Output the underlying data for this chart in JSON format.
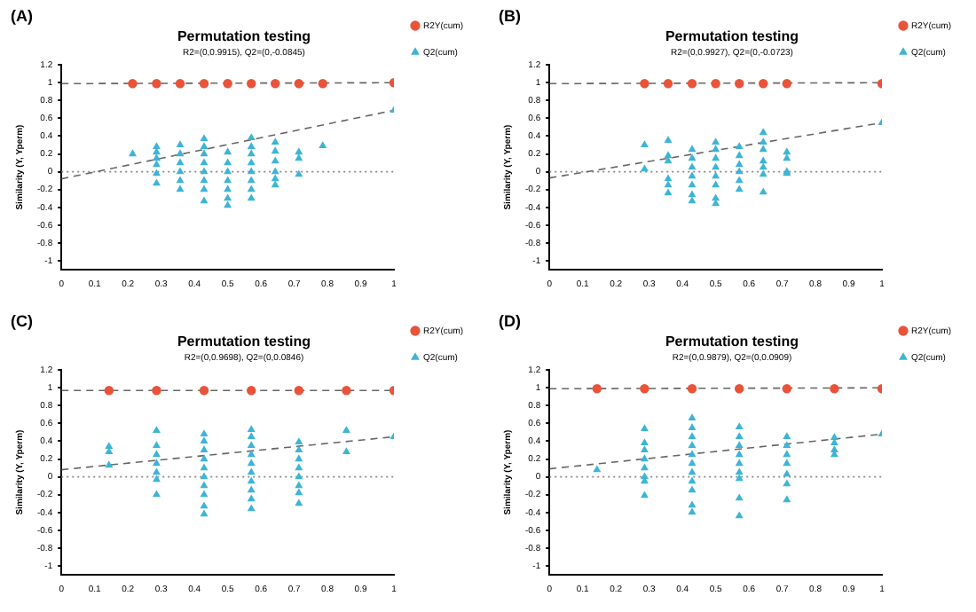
{
  "chart_data": [
    {
      "type": "scatter",
      "title": "Permutation testing",
      "subtitle": "R2=(0,0.9915), Q2=(0,-0.0845)",
      "ylabel": "Similarity (Y, Yperm)",
      "annotations": [
        "(A)"
      ],
      "xlim": [
        0,
        1
      ],
      "ylim": [
        -1.1,
        1.2
      ],
      "xticks": [
        0,
        0.1,
        0.2,
        0.3,
        0.4,
        0.5,
        0.6,
        0.7,
        0.8,
        0.9,
        1
      ],
      "yticks": [
        -1,
        -0.8,
        -0.6,
        -0.4,
        -0.2,
        0,
        0.2,
        0.4,
        0.6,
        0.8,
        1,
        1.2
      ],
      "grid": false,
      "legend": "right",
      "ref_lines": [
        {
          "axis": "y",
          "value": 0,
          "line_style": "dotted",
          "color": "#888888"
        }
      ],
      "series": [
        {
          "name": "R2Y(cum)",
          "type": "scatter",
          "marker": "circle",
          "color": "#e8533a",
          "x": [
            0.214,
            0.286,
            0.357,
            0.429,
            0.5,
            0.571,
            0.643,
            0.714,
            0.786,
            1
          ],
          "values": [
            0.99,
            0.99,
            0.99,
            0.99,
            0.99,
            0.99,
            0.99,
            0.99,
            0.99,
            1
          ]
        },
        {
          "name": "Q2(cum)",
          "type": "scatter",
          "marker": "triangle",
          "color": "#3cb4d6",
          "x": [
            0.214,
            0.286,
            0.286,
            0.286,
            0.286,
            0.286,
            0.286,
            0.357,
            0.357,
            0.357,
            0.357,
            0.357,
            0.357,
            0.429,
            0.429,
            0.429,
            0.429,
            0.429,
            0.429,
            0.429,
            0.429,
            0.5,
            0.5,
            0.5,
            0.5,
            0.5,
            0.5,
            0.5,
            0.571,
            0.571,
            0.571,
            0.571,
            0.571,
            0.571,
            0.571,
            0.571,
            0.643,
            0.643,
            0.643,
            0.643,
            0.643,
            0.643,
            0.714,
            0.714,
            0.714,
            0.786,
            1
          ],
          "values": [
            0.2,
            0.28,
            0.22,
            0.15,
            0.08,
            -0.02,
            -0.13,
            0.3,
            0.2,
            0.1,
            0,
            -0.1,
            -0.2,
            0.37,
            0.28,
            0.2,
            0.1,
            0,
            -0.1,
            -0.2,
            -0.33,
            0.22,
            0.1,
            0,
            -0.1,
            -0.2,
            -0.3,
            -0.38,
            0.38,
            0.28,
            0.2,
            0.1,
            0,
            -0.1,
            -0.2,
            -0.3,
            0.33,
            0.23,
            0.12,
            0,
            -0.08,
            -0.15,
            0.22,
            0.15,
            -0.03,
            0.29,
            0.69
          ]
        },
        {
          "type": "line",
          "line_style": "dashed",
          "color": "#666666",
          "x": [
            0,
            1
          ],
          "values": [
            0.99,
            1
          ]
        },
        {
          "type": "line",
          "line_style": "dashed",
          "color": "#666666",
          "x": [
            0,
            1
          ],
          "values": [
            -0.08,
            0.69
          ]
        }
      ]
    },
    {
      "type": "scatter",
      "title": "Permutation testing",
      "subtitle": "R2=(0,0.9927), Q2=(0,-0.0723)",
      "ylabel": "Similarity (Y, Yperm)",
      "annotations": [
        "(B)"
      ],
      "xlim": [
        0,
        1
      ],
      "ylim": [
        -1.1,
        1.2
      ],
      "xticks": [
        0,
        0.1,
        0.2,
        0.3,
        0.4,
        0.5,
        0.6,
        0.7,
        0.8,
        0.9,
        1
      ],
      "yticks": [
        -1,
        -0.8,
        -0.6,
        -0.4,
        -0.2,
        0,
        0.2,
        0.4,
        0.6,
        0.8,
        1,
        1.2
      ],
      "grid": false,
      "legend": "right",
      "ref_lines": [
        {
          "axis": "y",
          "value": 0,
          "line_style": "dotted",
          "color": "#888888"
        }
      ],
      "series": [
        {
          "name": "R2Y(cum)",
          "type": "scatter",
          "marker": "circle",
          "color": "#e8533a",
          "x": [
            0.286,
            0.357,
            0.429,
            0.5,
            0.571,
            0.643,
            0.714,
            1
          ],
          "values": [
            0.99,
            0.99,
            0.99,
            0.99,
            0.99,
            0.99,
            0.99,
            0.99
          ]
        },
        {
          "name": "Q2(cum)",
          "type": "scatter",
          "marker": "triangle",
          "color": "#3cb4d6",
          "x": [
            0.286,
            0.286,
            0.357,
            0.357,
            0.357,
            0.357,
            0.357,
            0.357,
            0.429,
            0.429,
            0.429,
            0.429,
            0.429,
            0.429,
            0.429,
            0.5,
            0.5,
            0.5,
            0.5,
            0.5,
            0.5,
            0.5,
            0.5,
            0.571,
            0.571,
            0.571,
            0.571,
            0.571,
            0.571,
            0.643,
            0.643,
            0.643,
            0.643,
            0.643,
            0.643,
            0.643,
            0.714,
            0.714,
            0.714,
            0.714,
            1
          ],
          "values": [
            0.3,
            0.03,
            0.35,
            0.18,
            0.12,
            -0.08,
            -0.15,
            -0.24,
            0.25,
            0.15,
            0.05,
            -0.05,
            -0.15,
            -0.26,
            -0.33,
            0.33,
            0.25,
            0.15,
            0.05,
            -0.05,
            -0.15,
            -0.3,
            -0.36,
            0.28,
            0.18,
            0.08,
            0,
            -0.1,
            -0.2,
            0.44,
            0.33,
            0.25,
            0.12,
            0.05,
            -0.03,
            -0.23,
            0.22,
            0.15,
            0,
            -0.02,
            0.55
          ]
        },
        {
          "type": "line",
          "line_style": "dashed",
          "color": "#666666",
          "x": [
            0,
            1
          ],
          "values": [
            0.99,
            1
          ]
        },
        {
          "type": "line",
          "line_style": "dashed",
          "color": "#666666",
          "x": [
            0,
            1
          ],
          "values": [
            -0.07,
            0.55
          ]
        }
      ]
    },
    {
      "type": "scatter",
      "title": "Permutation testing",
      "subtitle": "R2=(0,0.9698), Q2=(0,0.0846)",
      "ylabel": "Similarity (Y, Yperm)",
      "annotations": [
        "(C)"
      ],
      "xlim": [
        0,
        1
      ],
      "ylim": [
        -1.1,
        1.2
      ],
      "xticks": [
        0,
        0.1,
        0.2,
        0.3,
        0.4,
        0.5,
        0.6,
        0.7,
        0.8,
        0.9,
        1
      ],
      "yticks": [
        -1,
        -0.8,
        -0.6,
        -0.4,
        -0.2,
        0,
        0.2,
        0.4,
        0.6,
        0.8,
        1,
        1.2
      ],
      "grid": false,
      "legend": "right",
      "ref_lines": [
        {
          "axis": "y",
          "value": 0,
          "line_style": "dotted",
          "color": "#888888"
        }
      ],
      "series": [
        {
          "name": "R2Y(cum)",
          "type": "scatter",
          "marker": "circle",
          "color": "#e8533a",
          "x": [
            0.143,
            0.286,
            0.429,
            0.571,
            0.714,
            0.857,
            1
          ],
          "values": [
            0.97,
            0.97,
            0.97,
            0.97,
            0.97,
            0.97,
            0.97
          ]
        },
        {
          "name": "Q2(cum)",
          "type": "scatter",
          "marker": "triangle",
          "color": "#3cb4d6",
          "x": [
            0.143,
            0.143,
            0.143,
            0.286,
            0.286,
            0.286,
            0.286,
            0.286,
            0.286,
            0.286,
            0.429,
            0.429,
            0.429,
            0.429,
            0.429,
            0.429,
            0.429,
            0.429,
            0.429,
            0.429,
            0.571,
            0.571,
            0.571,
            0.571,
            0.571,
            0.571,
            0.571,
            0.571,
            0.571,
            0.571,
            0.714,
            0.714,
            0.714,
            0.714,
            0.714,
            0.714,
            0.714,
            0.714,
            0.857,
            0.857,
            1
          ],
          "values": [
            0.34,
            0.28,
            0.13,
            0.52,
            0.35,
            0.25,
            0.15,
            0.05,
            -0.03,
            -0.2,
            0.48,
            0.4,
            0.3,
            0.2,
            0.1,
            0,
            -0.1,
            -0.2,
            -0.33,
            -0.42,
            0.53,
            0.45,
            0.35,
            0.25,
            0.15,
            0.05,
            -0.05,
            -0.15,
            -0.25,
            -0.36,
            0.39,
            0.3,
            0.2,
            0.1,
            0,
            -0.1,
            -0.18,
            -0.3,
            0.52,
            0.28,
            0.45
          ]
        },
        {
          "type": "line",
          "line_style": "dashed",
          "color": "#666666",
          "x": [
            0,
            1
          ],
          "values": [
            0.97,
            0.97
          ]
        },
        {
          "type": "line",
          "line_style": "dashed",
          "color": "#666666",
          "x": [
            0,
            1
          ],
          "values": [
            0.08,
            0.45
          ]
        }
      ]
    },
    {
      "type": "scatter",
      "title": "Permutation testing",
      "subtitle": "R2=(0,0.9879), Q2=(0,0.0909)",
      "ylabel": "Similarity (Y, Yperm)",
      "annotations": [
        "(D)"
      ],
      "xlim": [
        0,
        1
      ],
      "ylim": [
        -1.1,
        1.2
      ],
      "xticks": [
        0,
        0.1,
        0.2,
        0.3,
        0.4,
        0.5,
        0.6,
        0.7,
        0.8,
        0.9,
        1
      ],
      "yticks": [
        -1,
        -0.8,
        -0.6,
        -0.4,
        -0.2,
        0,
        0.2,
        0.4,
        0.6,
        0.8,
        1,
        1.2
      ],
      "grid": false,
      "legend": "right",
      "ref_lines": [
        {
          "axis": "y",
          "value": 0,
          "line_style": "dotted",
          "color": "#888888"
        }
      ],
      "series": [
        {
          "name": "R2Y(cum)",
          "type": "scatter",
          "marker": "circle",
          "color": "#e8533a",
          "x": [
            0.143,
            0.286,
            0.429,
            0.571,
            0.714,
            0.857,
            1
          ],
          "values": [
            0.99,
            0.99,
            0.99,
            0.99,
            0.99,
            0.99,
            0.99
          ]
        },
        {
          "name": "Q2(cum)",
          "type": "scatter",
          "marker": "triangle",
          "color": "#3cb4d6",
          "x": [
            0.143,
            0.286,
            0.286,
            0.286,
            0.286,
            0.286,
            0.286,
            0.286,
            0.286,
            0.429,
            0.429,
            0.429,
            0.429,
            0.429,
            0.429,
            0.429,
            0.429,
            0.429,
            0.429,
            0.429,
            0.571,
            0.571,
            0.571,
            0.571,
            0.571,
            0.571,
            0.571,
            0.571,
            0.571,
            0.714,
            0.714,
            0.714,
            0.714,
            0.714,
            0.714,
            0.714,
            0.857,
            0.857,
            0.857,
            0.857,
            1
          ],
          "values": [
            0.08,
            0.54,
            0.38,
            0.3,
            0.2,
            0.1,
            0,
            -0.05,
            -0.21,
            0.66,
            0.55,
            0.45,
            0.35,
            0.25,
            0.15,
            0.05,
            -0.05,
            -0.15,
            -0.32,
            -0.4,
            0.56,
            0.45,
            0.35,
            0.25,
            0.15,
            0.05,
            -0.02,
            -0.24,
            -0.44,
            0.45,
            0.35,
            0.25,
            0.15,
            0.03,
            -0.08,
            -0.26,
            0.44,
            0.38,
            0.3,
            0.25,
            0.48
          ]
        },
        {
          "type": "line",
          "line_style": "dashed",
          "color": "#666666",
          "x": [
            0,
            1
          ],
          "values": [
            0.99,
            1
          ]
        },
        {
          "type": "line",
          "line_style": "dashed",
          "color": "#666666",
          "x": [
            0,
            1
          ],
          "values": [
            0.09,
            0.48
          ]
        }
      ]
    }
  ]
}
